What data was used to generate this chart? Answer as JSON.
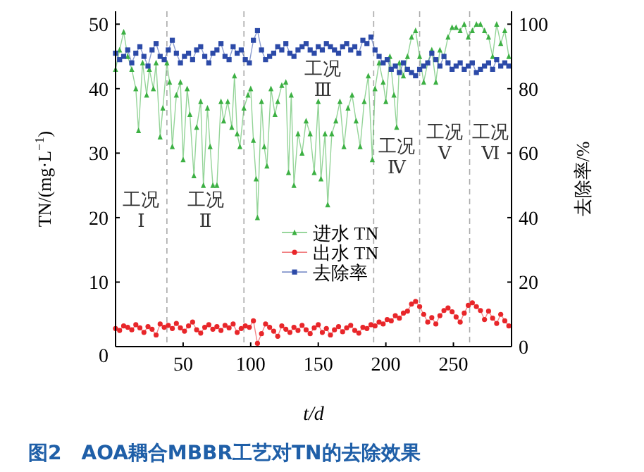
{
  "chart_data": {
    "type": "line",
    "title": "图2　AOA耦合MBBR工艺对TN的去除效果",
    "xlabel": "t/d",
    "ylabel": "TN/(mg·L$^{−1}$)",
    "y2label": "去除率/%",
    "xlim": [
      0,
      293
    ],
    "xticks": [
      50,
      100,
      150,
      200,
      250
    ],
    "ylim": [
      0,
      52
    ],
    "yticks": [
      0,
      10,
      20,
      30,
      40,
      50
    ],
    "y2lim": [
      0,
      104
    ],
    "y2ticks": [
      0,
      20,
      40,
      60,
      80,
      100
    ],
    "legend": "center",
    "grid": false,
    "x": [
      0,
      3,
      6,
      9,
      12,
      15,
      18,
      21,
      24,
      27,
      30,
      33,
      36,
      39,
      42,
      45,
      48,
      51,
      54,
      57,
      60,
      63,
      66,
      69,
      72,
      75,
      78,
      81,
      84,
      87,
      90,
      93,
      96,
      99,
      102,
      105,
      108,
      111,
      114,
      117,
      120,
      123,
      126,
      129,
      132,
      135,
      138,
      141,
      144,
      147,
      150,
      153,
      156,
      159,
      162,
      165,
      168,
      171,
      174,
      177,
      180,
      183,
      186,
      189,
      192,
      195,
      198,
      201,
      204,
      207,
      210,
      213,
      216,
      219,
      222,
      225,
      228,
      231,
      234,
      237,
      240,
      243,
      246,
      249,
      252,
      255,
      258,
      261,
      264,
      267,
      270,
      273,
      276,
      279,
      282,
      285,
      288,
      291
    ],
    "series": [
      {
        "name": "进水 TN",
        "color": "#3cb043",
        "marker": "triangle",
        "x": [
          0,
          3,
          6,
          9,
          12,
          15,
          17,
          20,
          23,
          25,
          28,
          30,
          33,
          35,
          38,
          40,
          42,
          45,
          48,
          50,
          53,
          55,
          58,
          60,
          63,
          65,
          68,
          70,
          72,
          75,
          78,
          80,
          83,
          86,
          88,
          90,
          92,
          95,
          98,
          100,
          102,
          104,
          105,
          108,
          110,
          112,
          115,
          118,
          120,
          123,
          126,
          128,
          130,
          132,
          135,
          138,
          141,
          144,
          147,
          150,
          152,
          155,
          157,
          160,
          163,
          166,
          169,
          172,
          175,
          178,
          181,
          184,
          187,
          190,
          192,
          195,
          198,
          200,
          203,
          206,
          208,
          210,
          213,
          216,
          219,
          222,
          225,
          228,
          231,
          234,
          237,
          240,
          243,
          246,
          249,
          252,
          255,
          258,
          261,
          264,
          267,
          270,
          273,
          276,
          279,
          282,
          285,
          288,
          291
        ],
        "values": [
          43,
          46,
          48.8,
          45,
          43,
          40,
          33.5,
          44,
          39,
          43,
          40,
          44,
          32.5,
          37,
          44,
          41,
          31,
          39,
          41,
          29,
          40,
          36,
          26.5,
          34,
          38,
          25,
          37,
          31,
          25,
          25,
          38,
          35,
          38,
          34,
          42,
          33,
          31,
          37,
          39,
          40,
          32,
          26,
          20,
          38,
          31,
          28,
          40,
          36,
          38,
          40.5,
          41,
          27,
          39,
          25,
          33,
          30,
          35,
          33,
          27,
          38,
          26,
          33,
          22,
          33,
          35,
          38,
          31,
          37,
          39,
          35,
          31,
          38,
          42,
          29,
          40,
          44,
          41,
          38,
          45,
          39,
          34,
          44,
          42,
          45,
          48,
          49,
          45,
          41,
          44,
          46,
          41,
          46,
          45,
          48,
          49.5,
          49.5,
          49,
          50,
          48,
          49,
          50,
          50,
          49,
          48,
          45,
          50,
          47,
          49,
          45
        ]
      },
      {
        "name": "出水 TN",
        "color": "#e8262a",
        "marker": "circle",
        "values": [
          2.8,
          2.5,
          3.2,
          3.0,
          2.6,
          3.4,
          2.9,
          2.2,
          3.1,
          2.7,
          1.8,
          3.5,
          3.0,
          3.3,
          2.8,
          3.6,
          2.9,
          2.4,
          3.2,
          3.8,
          2.6,
          2.1,
          3.0,
          3.4,
          2.7,
          3.1,
          2.5,
          3.3,
          2.9,
          3.5,
          2.2,
          2.8,
          3.2,
          3.0,
          4.0,
          0.5,
          2.0,
          3.5,
          3.0,
          2.4,
          1.6,
          3.2,
          2.7,
          2.2,
          3.0,
          2.5,
          3.3,
          2.6,
          2.0,
          2.9,
          3.4,
          2.2,
          2.8,
          1.8,
          2.6,
          3.1,
          2.3,
          2.9,
          3.3,
          2.5,
          2.1,
          3.0,
          2.8,
          3.4,
          3.2,
          3.8,
          3.5,
          4.2,
          4.0,
          4.8,
          4.4,
          5.2,
          5.5,
          6.6,
          7.0,
          6.2,
          5.0,
          3.8,
          4.5,
          3.5,
          4.8,
          5.6,
          6.0,
          5.4,
          4.6,
          3.8,
          5.2,
          6.4,
          6.8,
          6.2,
          5.6,
          4.2,
          5.5,
          4.4,
          3.6,
          5.0,
          4.0,
          3.2
        ]
      },
      {
        "name": "去除率",
        "color": "#2c4aa8",
        "marker": "square",
        "axis": "y2",
        "values": [
          91,
          89,
          90,
          92,
          88,
          91,
          93,
          90,
          87,
          92,
          94,
          90,
          89,
          92,
          95,
          91,
          88,
          90,
          91,
          89,
          92,
          93,
          90,
          88,
          91,
          92,
          94,
          90,
          89,
          93,
          91,
          92,
          89,
          88,
          95,
          98,
          92,
          89,
          90,
          91,
          93,
          92,
          94,
          91,
          90,
          92,
          93,
          94,
          92,
          91,
          93,
          92,
          94,
          93,
          92,
          91,
          93,
          94,
          92,
          93,
          91,
          95,
          94,
          96,
          92,
          90,
          88,
          89,
          86,
          87,
          85,
          88,
          86,
          85,
          84,
          86,
          87,
          88,
          91,
          89,
          87,
          90,
          88,
          86,
          87,
          88,
          86,
          87,
          88,
          85,
          86,
          87,
          88,
          86,
          89,
          87,
          88,
          87
        ]
      }
    ],
    "ref_lines": [
      {
        "axis": "x",
        "value": 38,
        "line_style": "dashed",
        "color": "#aaaaaa"
      },
      {
        "axis": "x",
        "value": 95,
        "line_style": "dashed",
        "color": "#aaaaaa"
      },
      {
        "axis": "x",
        "value": 191,
        "line_style": "dashed",
        "color": "#aaaaaa"
      },
      {
        "axis": "x",
        "value": 225,
        "line_style": "dashed",
        "color": "#aaaaaa"
      },
      {
        "axis": "x",
        "value": 262,
        "line_style": "dashed",
        "color": "#aaaaaa"
      }
    ],
    "annotations": [
      "工况 Ⅰ",
      "工况 Ⅱ",
      "工况 Ⅲ",
      "工况 Ⅳ",
      "工况 Ⅴ",
      "工况 Ⅵ"
    ]
  }
}
